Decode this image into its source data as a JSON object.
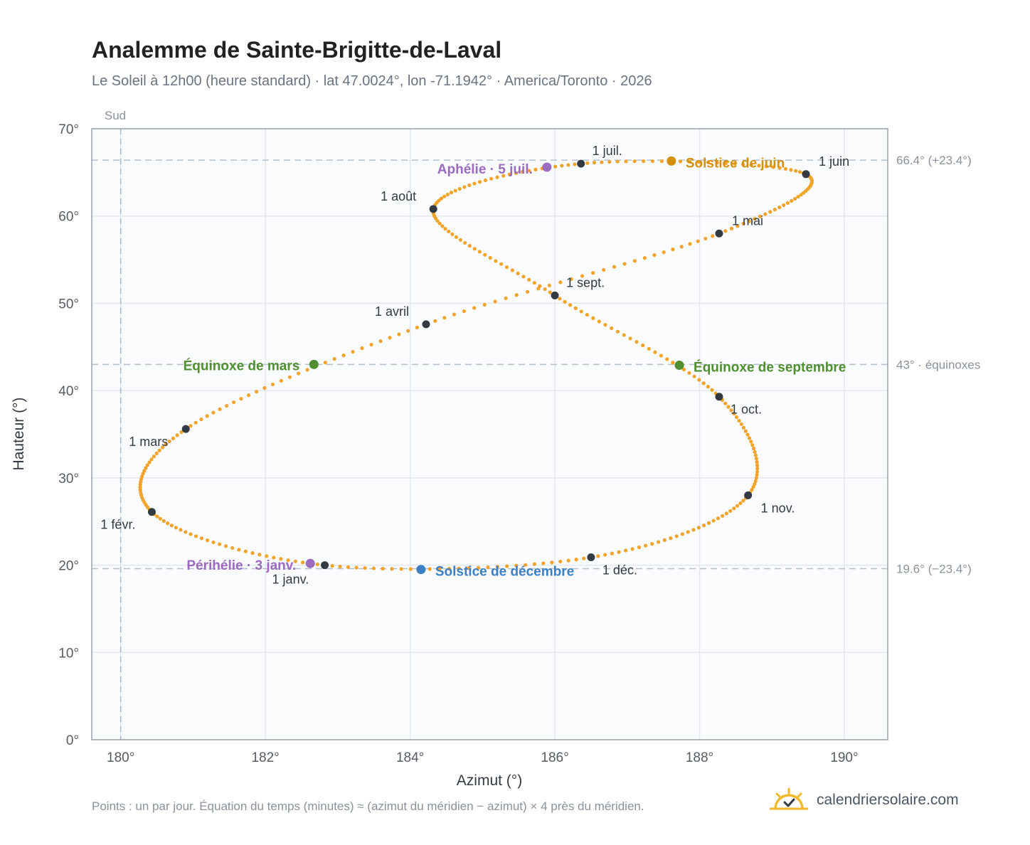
{
  "header": {
    "title": "Analemme de Sainte-Brigitte-de-Laval",
    "subtitle": "Le Soleil à 12h00 (heure standard) · lat 47.0024°, lon -71.1942° · America/Toronto · 2026"
  },
  "footer": {
    "note": "Points : un par jour. Équation du temps (minutes) ≈ (azimut du méridien − azimut) × 4 près du méridien.",
    "brand": "calendriersolaire.com"
  },
  "chart_data": {
    "type": "scatter",
    "xlabel": "Azimut (°)",
    "ylabel": "Hauteur (°)",
    "xlim": [
      179.6,
      190.6
    ],
    "ylim": [
      0,
      70
    ],
    "xticks": [
      180,
      182,
      184,
      186,
      188,
      190
    ],
    "yticks": [
      0,
      10,
      20,
      30,
      40,
      50,
      60,
      70
    ],
    "tick_suffix": "°",
    "grid": true,
    "meridian": {
      "x": 180,
      "label": "Sud"
    },
    "reference_lines": [
      {
        "y": 66.4,
        "label": "66.4° (+23.4°)"
      },
      {
        "y": 43.0,
        "label": "43° · équinoxes"
      },
      {
        "y": 19.6,
        "label": "19.6° (−23.4°)"
      }
    ],
    "month_points": [
      {
        "label": "1 janv.",
        "x": 182.82,
        "y": 20.0
      },
      {
        "label": "1 févr.",
        "x": 180.43,
        "y": 26.1
      },
      {
        "label": "1 mars",
        "x": 180.9,
        "y": 35.6
      },
      {
        "label": "1 avril",
        "x": 184.22,
        "y": 47.6
      },
      {
        "label": "1 mai",
        "x": 188.27,
        "y": 58.0
      },
      {
        "label": "1 juin",
        "x": 189.47,
        "y": 64.8
      },
      {
        "label": "1 juil.",
        "x": 186.36,
        "y": 66.0
      },
      {
        "label": "1 août",
        "x": 184.32,
        "y": 60.8
      },
      {
        "label": "1 sept.",
        "x": 186.0,
        "y": 50.9
      },
      {
        "label": "1 oct.",
        "x": 188.27,
        "y": 39.3
      },
      {
        "label": "1 nov.",
        "x": 188.67,
        "y": 28.0
      },
      {
        "label": "1 déc.",
        "x": 186.5,
        "y": 20.9
      }
    ],
    "events": [
      {
        "label": "Solstice de juin",
        "x": 187.61,
        "y": 66.3,
        "color": "#d4900a"
      },
      {
        "label": "Aphélie · 5 juil.",
        "x": 185.89,
        "y": 65.6,
        "color": "#9b6bbf"
      },
      {
        "label": "Équinoxe de mars",
        "x": 182.67,
        "y": 43.0,
        "color": "#4f8f2f"
      },
      {
        "label": "Équinoxe de septembre",
        "x": 187.72,
        "y": 42.9,
        "color": "#4f8f2f"
      },
      {
        "label": "Périhélie · 3 janv.",
        "x": 182.62,
        "y": 20.2,
        "color": "#9b6bbf"
      },
      {
        "label": "Solstice de décembre",
        "x": 184.15,
        "y": 19.5,
        "color": "#3b7fc4"
      }
    ],
    "path_color": "#f2a42a",
    "month_point_color": "#333a42"
  }
}
